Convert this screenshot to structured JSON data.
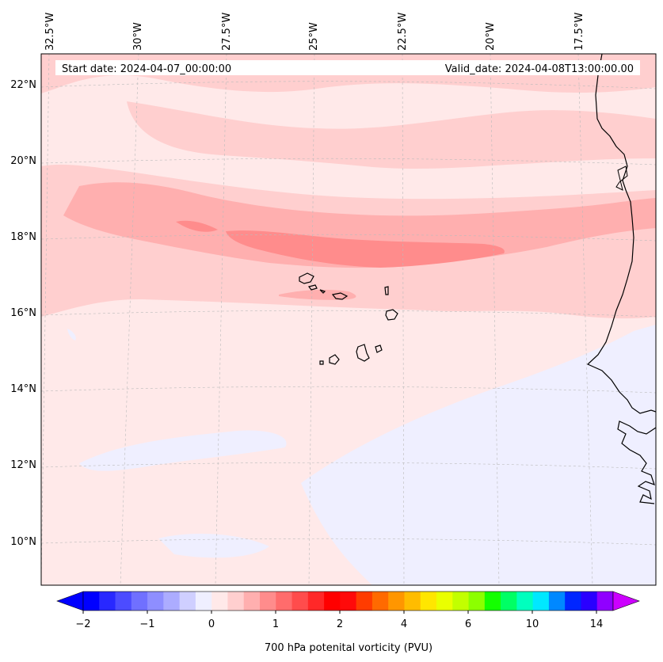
{
  "header": {
    "start_date": "Start date: 2024-04-07_00:00:00",
    "valid_date": "Valid_date: 2024-04-08T13:00:00.00"
  },
  "map": {
    "lon_labels": [
      "32.5°W",
      "30°W",
      "27.5°W",
      "25°W",
      "22.5°W",
      "20°W",
      "17.5°W"
    ],
    "lat_labels": [
      "22°N",
      "20°N",
      "18°N",
      "16°N",
      "14°N",
      "12°N",
      "10°N"
    ]
  },
  "colorbar": {
    "label": "700 hPa potenital vorticity (PVU)",
    "tick_labels": [
      "−2",
      "−1",
      "0",
      "1",
      "2",
      "4",
      "6",
      "10",
      "14"
    ],
    "colors": [
      "#0000ff",
      "#2828ff",
      "#4c4cff",
      "#7070ff",
      "#8e8eff",
      "#acacff",
      "#cfcfff",
      "#efefff",
      "#ffe9e9",
      "#ffcfcf",
      "#ffafaf",
      "#ff8c8c",
      "#ff6c6c",
      "#ff4c4c",
      "#ff2828",
      "#ff0000",
      "#ff0a0a",
      "#ff3c00",
      "#ff6a00",
      "#ff9600",
      "#ffbc00",
      "#ffe600",
      "#eaff00",
      "#c2ff00",
      "#8cff00",
      "#14ff00",
      "#00ff64",
      "#00ffbe",
      "#00e8ff",
      "#0088ff",
      "#0026ff",
      "#2a00ff",
      "#9000ff"
    ],
    "under_color": "#0000ff",
    "over_color": "#cc00ff"
  }
}
